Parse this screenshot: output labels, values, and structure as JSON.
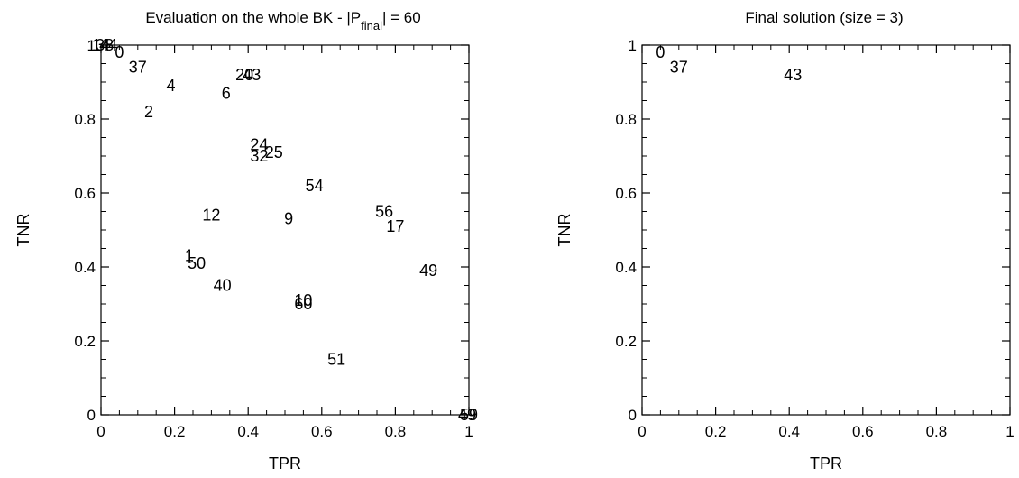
{
  "chart_data": [
    {
      "type": "scatter",
      "title": "Evaluation on the whole BK - |P",
      "title_subscript": "final",
      "title_suffix": "| = 60",
      "xlabel": "TPR",
      "ylabel": "TNR",
      "xlim": [
        0,
        1
      ],
      "ylim": [
        0,
        1
      ],
      "x_ticks": [
        "0",
        "0.2",
        "0.4",
        "0.6",
        "0.8",
        "1"
      ],
      "y_ticks": [
        "0",
        "0.2",
        "0.4",
        "0.6",
        "0.8",
        "1"
      ],
      "grid": false,
      "marker": "text labels",
      "points": [
        {
          "label": "14",
          "x": 0.0,
          "y": 1.0
        },
        {
          "label": "38",
          "x": 0.01,
          "y": 1.0
        },
        {
          "label": "44",
          "x": 0.02,
          "y": 1.0
        },
        {
          "label": "0",
          "x": 0.05,
          "y": 0.98
        },
        {
          "label": "37",
          "x": 0.1,
          "y": 0.94
        },
        {
          "label": "4",
          "x": 0.19,
          "y": 0.89
        },
        {
          "label": "2",
          "x": 0.13,
          "y": 0.82
        },
        {
          "label": "20",
          "x": 0.39,
          "y": 0.92
        },
        {
          "label": "43",
          "x": 0.41,
          "y": 0.92
        },
        {
          "label": "6",
          "x": 0.34,
          "y": 0.87
        },
        {
          "label": "24",
          "x": 0.43,
          "y": 0.73
        },
        {
          "label": "32",
          "x": 0.43,
          "y": 0.7
        },
        {
          "label": "25",
          "x": 0.47,
          "y": 0.71
        },
        {
          "label": "54",
          "x": 0.58,
          "y": 0.62
        },
        {
          "label": "12",
          "x": 0.3,
          "y": 0.54
        },
        {
          "label": "9",
          "x": 0.51,
          "y": 0.53
        },
        {
          "label": "56",
          "x": 0.77,
          "y": 0.55
        },
        {
          "label": "17",
          "x": 0.8,
          "y": 0.51
        },
        {
          "label": "1",
          "x": 0.24,
          "y": 0.43
        },
        {
          "label": "50",
          "x": 0.26,
          "y": 0.41
        },
        {
          "label": "40",
          "x": 0.33,
          "y": 0.35
        },
        {
          "label": "49",
          "x": 0.89,
          "y": 0.39
        },
        {
          "label": "10",
          "x": 0.55,
          "y": 0.31
        },
        {
          "label": "60",
          "x": 0.55,
          "y": 0.3
        },
        {
          "label": "51",
          "x": 0.64,
          "y": 0.15
        },
        {
          "label": "49",
          "x": 0.995,
          "y": 0.0
        },
        {
          "label": "59",
          "x": 1.0,
          "y": 0.0
        }
      ]
    },
    {
      "type": "scatter",
      "title": "Final solution (size = 3)",
      "xlabel": "TPR",
      "ylabel": "TNR",
      "xlim": [
        0,
        1
      ],
      "ylim": [
        0,
        1
      ],
      "x_ticks": [
        "0",
        "0.2",
        "0.4",
        "0.6",
        "0.8",
        "1"
      ],
      "y_ticks": [
        "0",
        "0.2",
        "0.4",
        "0.6",
        "0.8",
        "1"
      ],
      "grid": false,
      "marker": "text labels",
      "points": [
        {
          "label": "0",
          "x": 0.05,
          "y": 0.98
        },
        {
          "label": "37",
          "x": 0.1,
          "y": 0.94
        },
        {
          "label": "43",
          "x": 0.41,
          "y": 0.92
        }
      ]
    }
  ]
}
